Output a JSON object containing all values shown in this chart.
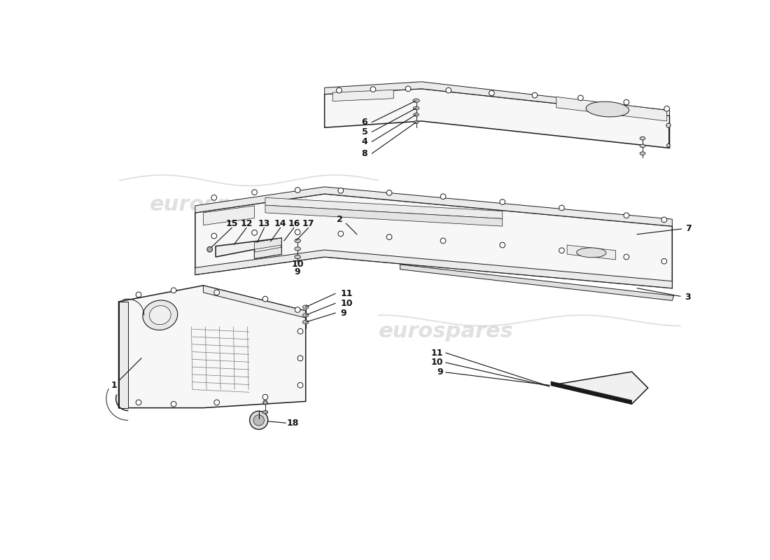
{
  "bg_color": "#ffffff",
  "line_color": "#1a1a1a",
  "lw_main": 1.1,
  "lw_thin": 0.7,
  "lw_detail": 0.5,
  "fill_main": "#f7f7f7",
  "fill_edge": "#ebebeb",
  "fill_dark": "#d8d8d8",
  "watermark_color": "#c8c8c8",
  "watermark_alpha": 0.55,
  "wm_fontsize": 22,
  "label_fontsize": 9,
  "label_color": "#111111"
}
